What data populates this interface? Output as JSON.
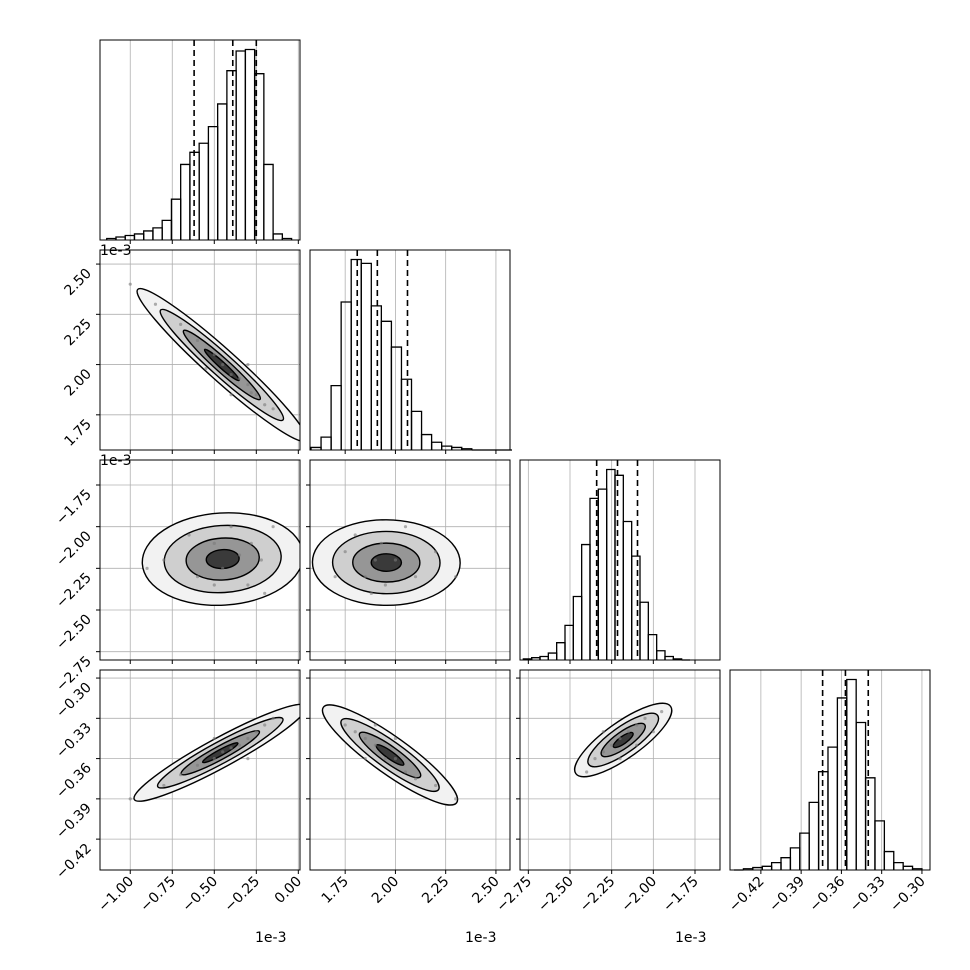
{
  "chart_data": {
    "type": "corner",
    "grid": true,
    "params": [
      {
        "xlim": [
          -1.18,
          0.01
        ],
        "offset": "1e-3",
        "ticks": [
          {
            "value": -1.0,
            "label": "−1.00"
          },
          {
            "value": -0.75,
            "label": "−0.75"
          },
          {
            "value": -0.5,
            "label": "−0.50"
          },
          {
            "value": -0.25,
            "label": "−0.25"
          },
          {
            "value": 0.0,
            "label": "0.00"
          }
        ]
      },
      {
        "xlim": [
          1.575,
          2.57
        ],
        "offset": "1e-3",
        "ticks": [
          1.75,
          {
            "value": 2.0,
            "label": "2.00"
          },
          2.25,
          {
            "value": 2.5,
            "label": "2.50"
          }
        ]
      },
      {
        "xlim": [
          -2.8,
          -1.6
        ],
        "offset": "1e-3",
        "ticks": [
          {
            "value": -2.75,
            "label": "−2.75"
          },
          {
            "value": -2.5,
            "label": "−2.50"
          },
          {
            "value": -2.25,
            "label": "−2.25"
          },
          {
            "value": -2.0,
            "label": "−2.00"
          },
          {
            "value": -1.75,
            "label": "−1.75"
          }
        ]
      },
      {
        "xlim": [
          -0.443,
          -0.294
        ],
        "ticks": [
          {
            "value": -0.42,
            "label": "−0.42"
          },
          {
            "value": -0.39,
            "label": "−0.39"
          },
          {
            "value": -0.36,
            "label": "−0.36"
          },
          {
            "value": -0.33,
            "label": "−0.33"
          },
          {
            "value": -0.3,
            "label": "−0.30"
          }
        ]
      }
    ],
    "histograms": [
      {
        "bins": [
          -1.14,
          -1.085,
          -1.03,
          -0.975,
          -0.92,
          -0.865,
          -0.81,
          -0.755,
          -0.7,
          -0.645,
          -0.59,
          -0.535,
          -0.48,
          -0.425,
          -0.37,
          -0.315,
          -0.26,
          -0.205,
          -0.15,
          -0.095,
          -0.04
        ],
        "values": [
          1,
          2,
          3,
          4,
          6,
          8,
          13,
          27,
          50,
          58,
          64,
          75,
          90,
          112,
          125,
          126,
          110,
          50,
          4,
          1
        ],
        "quantiles": [
          -0.62,
          -0.39,
          -0.25
        ]
      },
      {
        "bins": [
          1.58,
          1.63,
          1.68,
          1.73,
          1.78,
          1.83,
          1.88,
          1.93,
          1.98,
          2.03,
          2.08,
          2.13,
          2.18,
          2.23,
          2.28,
          2.33,
          2.38,
          2.43,
          2.48,
          2.53,
          2.58
        ],
        "values": [
          2,
          10,
          50,
          115,
          148,
          145,
          112,
          100,
          80,
          55,
          30,
          12,
          6,
          3,
          2,
          1,
          0,
          0,
          0,
          0
        ],
        "quantiles": [
          1.81,
          1.91,
          2.06
        ]
      },
      {
        "bins": [
          -2.78,
          -2.73,
          -2.68,
          -2.63,
          -2.58,
          -2.53,
          -2.48,
          -2.43,
          -2.38,
          -2.33,
          -2.28,
          -2.23,
          -2.18,
          -2.13,
          -2.08,
          -2.03,
          -1.98,
          -1.93,
          -1.88,
          -1.83,
          -1.78
        ],
        "values": [
          1,
          2,
          3,
          6,
          15,
          30,
          55,
          100,
          140,
          148,
          165,
          160,
          120,
          90,
          50,
          22,
          8,
          3,
          1,
          0
        ],
        "quantiles": [
          -2.34,
          -2.215,
          -2.095
        ]
      },
      {
        "bins": [
          -0.44,
          -0.433,
          -0.426,
          -0.419,
          -0.412,
          -0.405,
          -0.398,
          -0.391,
          -0.384,
          -0.377,
          -0.37,
          -0.363,
          -0.356,
          -0.349,
          -0.342,
          -0.335,
          -0.328,
          -0.321,
          -0.314,
          -0.307,
          -0.3
        ],
        "values": [
          0,
          1,
          2,
          3,
          6,
          10,
          18,
          30,
          55,
          80,
          100,
          140,
          155,
          120,
          75,
          40,
          15,
          6,
          3,
          1
        ],
        "quantiles": [
          -0.374,
          -0.357,
          -0.34
        ]
      }
    ],
    "pairs": [
      {
        "x": [
          -1.0,
          -0.85,
          -0.7,
          -0.6,
          -0.5,
          -0.45,
          -0.4,
          -0.35,
          -0.3,
          -0.28,
          -0.25,
          -0.2,
          -0.15,
          -0.55,
          -0.3,
          -0.4
        ],
        "y": [
          2.4,
          2.3,
          2.2,
          2.12,
          2.05,
          2.0,
          1.95,
          1.93,
          1.9,
          1.86,
          1.85,
          1.8,
          1.78,
          1.98,
          2.0,
          1.85
        ]
      },
      {
        "x": [
          -0.8,
          -0.65,
          -0.6,
          -0.5,
          -0.45,
          -0.4,
          -0.35,
          -0.3,
          -0.28,
          -0.22,
          -0.15,
          -0.2,
          -0.9,
          -0.5
        ],
        "y": [
          -2.2,
          -2.05,
          -2.3,
          -2.1,
          -2.25,
          -2.0,
          -2.17,
          -2.35,
          -2.1,
          -2.2,
          -2.0,
          -2.4,
          -2.25,
          -2.35
        ]
      },
      {
        "x": [
          1.7,
          1.75,
          1.8,
          1.85,
          1.9,
          1.93,
          1.95,
          2.0,
          2.05,
          2.1,
          2.2,
          1.88,
          2.3
        ],
        "y": [
          -2.3,
          -2.15,
          -2.05,
          -2.3,
          -2.2,
          -2.1,
          -2.35,
          -2.2,
          -2.0,
          -2.3,
          -2.15,
          -2.4,
          -2.3
        ]
      },
      {
        "x": [
          -1.0,
          -0.8,
          -0.7,
          -0.6,
          -0.5,
          -0.45,
          -0.4,
          -0.35,
          -0.3,
          -0.25,
          -0.2,
          -0.15,
          -0.5,
          -0.3
        ],
        "y": [
          -0.39,
          -0.38,
          -0.372,
          -0.365,
          -0.36,
          -0.355,
          -0.352,
          -0.35,
          -0.345,
          -0.34,
          -0.335,
          -0.33,
          -0.345,
          -0.36
        ]
      },
      {
        "x": [
          1.75,
          1.8,
          1.85,
          1.9,
          1.9,
          1.95,
          2.0,
          2.05,
          2.1,
          2.2,
          1.85,
          2.0,
          2.3
        ],
        "y": [
          -0.335,
          -0.34,
          -0.345,
          -0.35,
          -0.335,
          -0.36,
          -0.36,
          -0.37,
          -0.375,
          -0.38,
          -0.36,
          -0.345,
          -0.39
        ]
      },
      {
        "x": [
          -2.4,
          -2.35,
          -2.3,
          -2.25,
          -2.2,
          -2.15,
          -2.1,
          -2.05,
          -2.2,
          -2.1,
          -2.3,
          -2.0,
          -1.95
        ],
        "y": [
          -0.37,
          -0.36,
          -0.355,
          -0.35,
          -0.345,
          -0.34,
          -0.335,
          -0.33,
          -0.36,
          -0.35,
          -0.34,
          -0.34,
          -0.325
        ]
      }
    ]
  }
}
